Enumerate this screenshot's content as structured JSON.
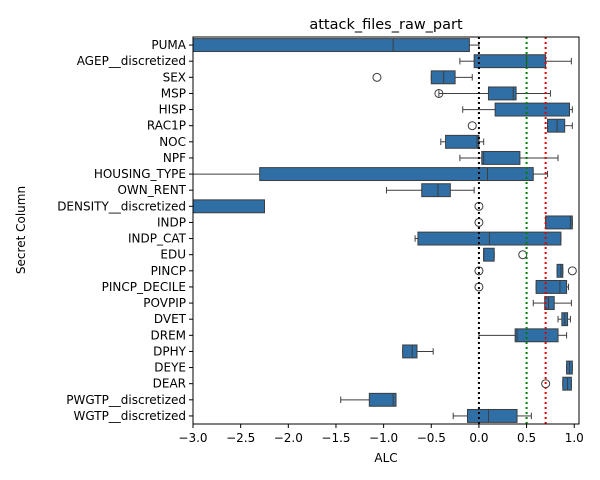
{
  "chart_data": {
    "type": "box",
    "orientation": "horizontal",
    "title": "attack_files_raw_part",
    "xlabel": "ALC",
    "ylabel": "Secret Column",
    "xlim": [
      -3.0,
      1.05
    ],
    "xticks": [
      -3.0,
      -2.5,
      -2.0,
      -1.5,
      -1.0,
      -0.5,
      0.0,
      0.5,
      1.0
    ],
    "xtick_labels": [
      "−3.0",
      "−2.5",
      "−2.0",
      "−1.5",
      "−1.0",
      "−0.5",
      "0.0",
      "0.5",
      "1.0"
    ],
    "box_color": "#2f6fa6",
    "reference_lines": [
      {
        "x": 0.0,
        "color": "#000000",
        "style": "dotted"
      },
      {
        "x": 0.5,
        "color": "#008000",
        "style": "dotted"
      },
      {
        "x": 0.7,
        "color": "#e00000",
        "style": "dotted"
      }
    ],
    "categories": [
      "PUMA",
      "AGEP__discretized",
      "SEX",
      "MSP",
      "HISP",
      "RAC1P",
      "NOC",
      "NPF",
      "HOUSING_TYPE",
      "OWN_RENT",
      "DENSITY__discretized",
      "INDP",
      "INDP_CAT",
      "EDU",
      "PINCP",
      "PINCP_DECILE",
      "POVPIP",
      "DVET",
      "DREM",
      "DPHY",
      "DEYE",
      "DEAR",
      "PWGTP__discretized",
      "WGTP__discretized"
    ],
    "boxes": [
      {
        "whislo": -3.0,
        "q1": -3.0,
        "med": -0.9,
        "q3": -0.1,
        "whishi": 0.0,
        "fliers": []
      },
      {
        "whislo": -0.2,
        "q1": -0.05,
        "med": 0.5,
        "q3": 0.7,
        "whishi": 0.97,
        "fliers": []
      },
      {
        "whislo": -0.5,
        "q1": -0.5,
        "med": -0.37,
        "q3": -0.25,
        "whishi": -0.07,
        "fliers": [
          -1.07
        ]
      },
      {
        "whislo": -0.42,
        "q1": 0.1,
        "med": 0.36,
        "q3": 0.39,
        "whishi": 0.75,
        "fliers": [
          -0.42
        ]
      },
      {
        "whislo": -0.17,
        "q1": 0.17,
        "med": 0.95,
        "q3": 0.95,
        "whishi": 0.98,
        "fliers": []
      },
      {
        "whislo": 0.72,
        "q1": 0.72,
        "med": 0.82,
        "q3": 0.9,
        "whishi": 0.98,
        "fliers": [
          -0.07
        ]
      },
      {
        "whislo": -0.4,
        "q1": -0.35,
        "med": -0.02,
        "q3": 0.0,
        "whishi": 0.05,
        "fliers": []
      },
      {
        "whislo": -0.2,
        "q1": 0.03,
        "med": 0.05,
        "q3": 0.43,
        "whishi": 0.83,
        "fliers": []
      },
      {
        "whislo": -3.0,
        "q1": -2.3,
        "med": 0.09,
        "q3": 0.57,
        "whishi": 0.72,
        "fliers": []
      },
      {
        "whislo": -0.97,
        "q1": -0.6,
        "med": -0.43,
        "q3": -0.3,
        "whishi": -0.05,
        "fliers": []
      },
      {
        "whislo": -3.0,
        "q1": -3.0,
        "med": -3.0,
        "q3": -2.25,
        "whishi": -2.25,
        "fliers": [
          0.0
        ]
      },
      {
        "whislo": 0.7,
        "q1": 0.7,
        "med": 0.96,
        "q3": 0.98,
        "whishi": 0.98,
        "fliers": [
          0.0
        ]
      },
      {
        "whislo": -0.67,
        "q1": -0.64,
        "med": 0.11,
        "q3": 0.86,
        "whishi": 0.86,
        "fliers": []
      },
      {
        "whislo": 0.05,
        "q1": 0.05,
        "med": 0.05,
        "q3": 0.16,
        "whishi": 0.16,
        "fliers": [
          0.46
        ]
      },
      {
        "whislo": 0.82,
        "q1": 0.82,
        "med": 0.86,
        "q3": 0.88,
        "whishi": 0.88,
        "fliers": [
          0.0,
          0.98
        ]
      },
      {
        "whislo": 0.6,
        "q1": 0.6,
        "med": 0.85,
        "q3": 0.92,
        "whishi": 0.94,
        "fliers": [
          0.0
        ]
      },
      {
        "whislo": 0.57,
        "q1": 0.69,
        "med": 0.73,
        "q3": 0.79,
        "whishi": 0.97,
        "fliers": []
      },
      {
        "whislo": 0.83,
        "q1": 0.87,
        "med": 0.9,
        "q3": 0.93,
        "whishi": 0.96,
        "fliers": []
      },
      {
        "whislo": 0.0,
        "q1": 0.38,
        "med": 0.4,
        "q3": 0.83,
        "whishi": 0.92,
        "fliers": []
      },
      {
        "whislo": -0.8,
        "q1": -0.8,
        "med": -0.7,
        "q3": -0.65,
        "whishi": -0.48,
        "fliers": []
      },
      {
        "whislo": 0.92,
        "q1": 0.92,
        "med": 0.95,
        "q3": 0.98,
        "whishi": 0.98,
        "fliers": []
      },
      {
        "whislo": 0.88,
        "q1": 0.88,
        "med": 0.93,
        "q3": 0.97,
        "whishi": 0.97,
        "fliers": [
          0.7
        ]
      },
      {
        "whislo": -1.45,
        "q1": -1.15,
        "med": -0.9,
        "q3": -0.87,
        "whishi": -0.87,
        "fliers": []
      },
      {
        "whislo": -0.27,
        "q1": -0.12,
        "med": 0.1,
        "q3": 0.4,
        "whishi": 0.55,
        "fliers": []
      }
    ]
  }
}
